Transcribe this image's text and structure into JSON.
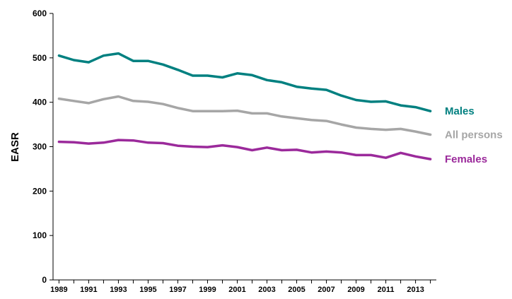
{
  "chart_data": {
    "type": "line",
    "ylabel": "EASR",
    "xlabel": "",
    "ylim": [
      0,
      600
    ],
    "yticks": [
      0,
      100,
      200,
      300,
      400,
      500,
      600
    ],
    "xlim": [
      1989,
      2014
    ],
    "xticks": [
      1989,
      1991,
      1993,
      1995,
      1997,
      1999,
      2001,
      2003,
      2005,
      2007,
      2009,
      2011,
      2013
    ],
    "grid": false,
    "x": [
      1989,
      1990,
      1991,
      1992,
      1993,
      1994,
      1995,
      1996,
      1997,
      1998,
      1999,
      2000,
      2001,
      2002,
      2003,
      2004,
      2005,
      2006,
      2007,
      2008,
      2009,
      2010,
      2011,
      2012,
      2013,
      2014
    ],
    "series": [
      {
        "name": "Males",
        "color": "#008080",
        "values": [
          505,
          495,
          490,
          505,
          510,
          493,
          493,
          485,
          473,
          460,
          460,
          456,
          465,
          461,
          450,
          445,
          435,
          431,
          428,
          415,
          405,
          401,
          402,
          393,
          389,
          380
        ]
      },
      {
        "name": "All persons",
        "color": "#a6a6a6",
        "values": [
          408,
          403,
          398,
          407,
          413,
          403,
          401,
          396,
          387,
          380,
          380,
          380,
          381,
          375,
          375,
          368,
          364,
          360,
          358,
          350,
          343,
          340,
          338,
          340,
          334,
          327
        ]
      },
      {
        "name": "Females",
        "color": "#9b2a9b",
        "values": [
          311,
          310,
          307,
          309,
          315,
          314,
          309,
          308,
          302,
          300,
          299,
          303,
          299,
          292,
          298,
          292,
          293,
          287,
          289,
          287,
          281,
          281,
          275,
          286,
          278,
          272
        ]
      }
    ]
  }
}
